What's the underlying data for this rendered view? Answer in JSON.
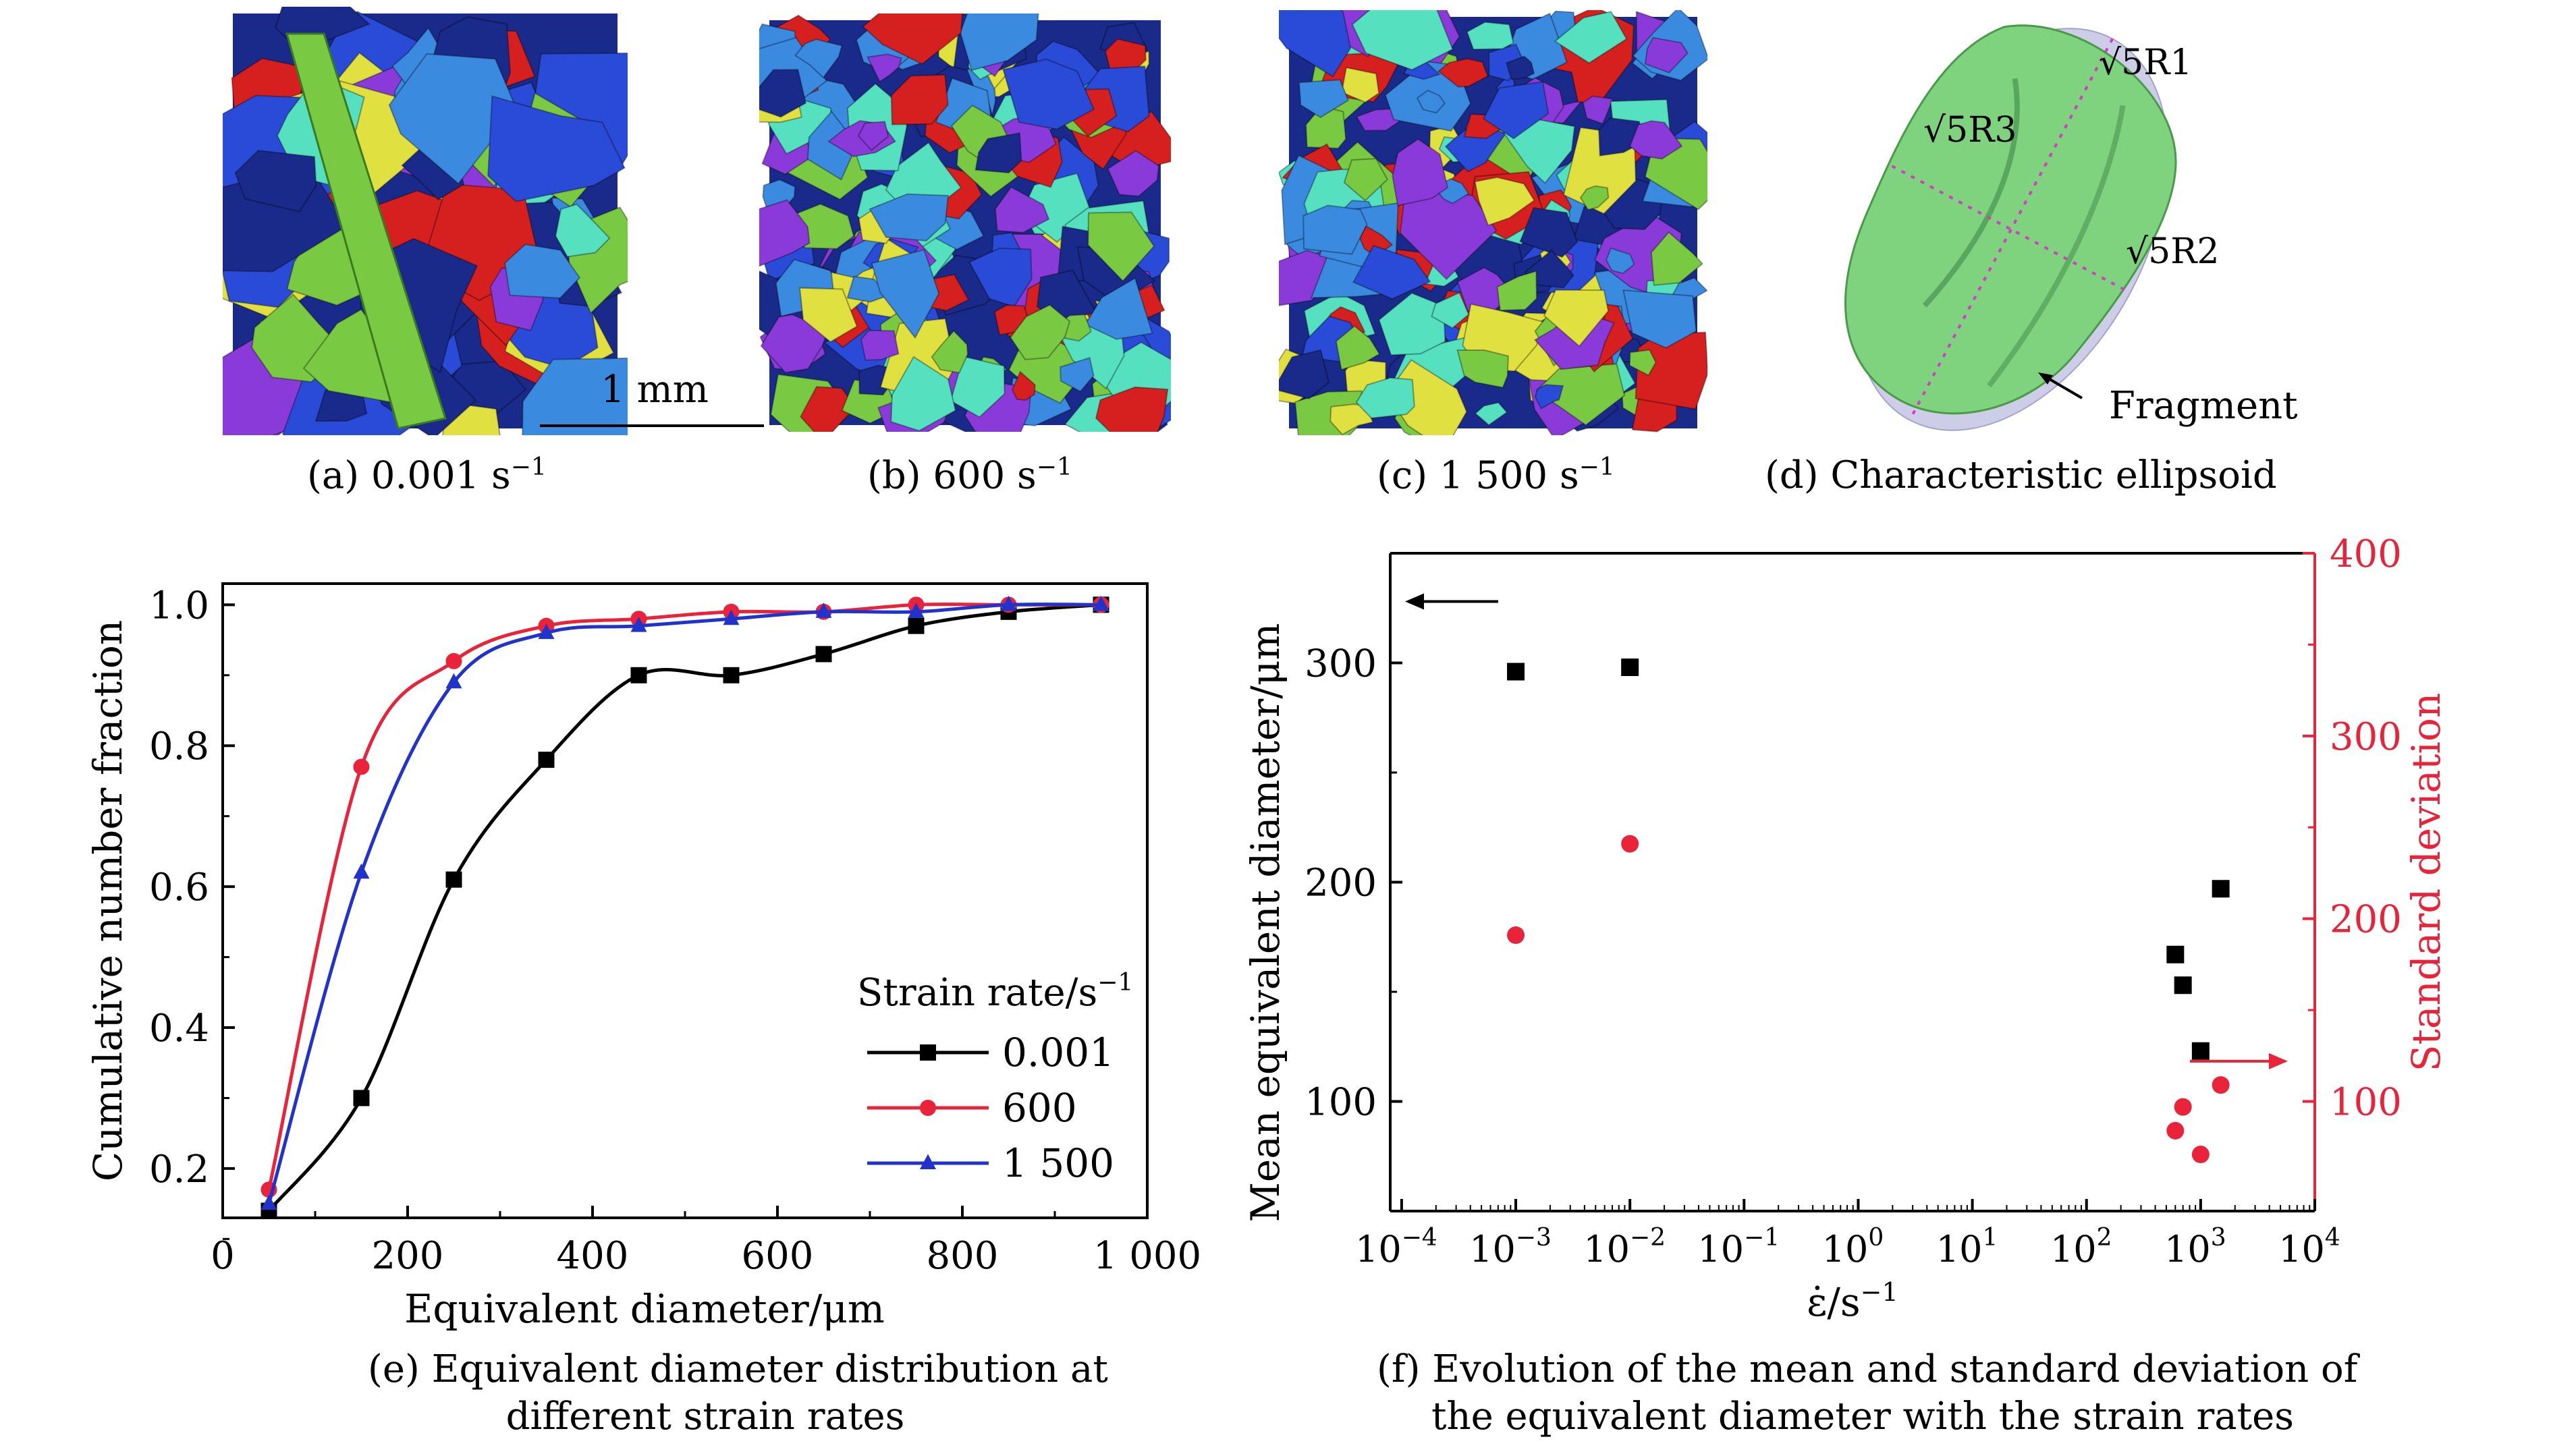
{
  "panels": {
    "a": {
      "caption": "(a) 0.001 s",
      "sup": "−1"
    },
    "b": {
      "caption": "(b) 600 s",
      "sup": "−1"
    },
    "c": {
      "caption": "(c) 1 500 s",
      "sup": "−1"
    },
    "d": {
      "caption": "(d) Characteristic ellipsoid"
    },
    "scale_bar": "1 mm",
    "ellipsoid": {
      "label_r1": "√5R1",
      "label_r2": "√5R2",
      "label_r3": "√5R3",
      "fragment_label": "Fragment",
      "fragment_color": "#7fd37f",
      "ellipsoid_color": "#c8c8e6"
    },
    "fragment_colors": [
      "#2a4bd7",
      "#d62020",
      "#7ac943",
      "#e0e040",
      "#55e0c0",
      "#8a3ad9",
      "#1a2a8a",
      "#3a8ae0"
    ]
  },
  "captions": {
    "e_line1": "(e) Equivalent diameter distribution at",
    "e_line2": "different strain rates",
    "f_line1": "(f) Evolution of the mean and standard deviation of",
    "f_line2": "the equivalent diameter with the strain rates"
  },
  "chart_data": [
    {
      "type": "line",
      "xlabel": "Equivalent diameter/μm",
      "ylabel": "Cumulative number fraction",
      "xlim": [
        0,
        1000
      ],
      "ylim": [
        0.13,
        1.03
      ],
      "xticks": [
        0,
        200,
        400,
        600,
        800,
        1000
      ],
      "xtick_labels": [
        "0",
        "200",
        "400",
        "600",
        "800",
        "1 000"
      ],
      "yticks": [
        0.2,
        0.4,
        0.6,
        0.8,
        1.0
      ],
      "ytick_labels": [
        "0.2",
        "0.4",
        "0.6",
        "0.8",
        "1.0"
      ],
      "legend_title": "Strain rate/s",
      "legend_title_sup": "−1",
      "legend_position": "lower-right",
      "series": [
        {
          "name": "0.001",
          "color": "#000000",
          "marker": "square",
          "x": [
            50,
            150,
            250,
            350,
            450,
            550,
            650,
            750,
            850,
            950
          ],
          "y": [
            0.14,
            0.3,
            0.61,
            0.78,
            0.9,
            0.9,
            0.93,
            0.97,
            0.99,
            1.0
          ]
        },
        {
          "name": "600",
          "color": "#e8233a",
          "marker": "circle",
          "x": [
            50,
            150,
            250,
            350,
            450,
            550,
            650,
            750,
            850,
            950
          ],
          "y": [
            0.17,
            0.77,
            0.92,
            0.97,
            0.98,
            0.99,
            0.99,
            1.0,
            1.0,
            1.0
          ]
        },
        {
          "name": "1 500",
          "color": "#2233cc",
          "marker": "triangle",
          "x": [
            50,
            150,
            250,
            350,
            450,
            550,
            650,
            750,
            850,
            950
          ],
          "y": [
            0.15,
            0.62,
            0.89,
            0.96,
            0.97,
            0.98,
            0.99,
            0.99,
            1.0,
            1.0
          ]
        }
      ]
    },
    {
      "type": "scatter",
      "xlabel": "ε̇/s",
      "xlabel_sup": "−1",
      "ylabel": "Mean equivalent diameter/μm",
      "y2label": "Standard deviation",
      "xscale": "log",
      "xlim_exp": [
        -4.1,
        4.0
      ],
      "xtick_exponents": [
        -4,
        -3,
        -2,
        -1,
        0,
        1,
        2,
        3,
        4
      ],
      "ylim": [
        50,
        350
      ],
      "yticks": [
        100,
        200,
        300
      ],
      "y2lim": [
        40,
        400
      ],
      "y2ticks": [
        100,
        200,
        300,
        400
      ],
      "y2_color": "#e8233a",
      "series": [
        {
          "name": "",
          "axis": "left",
          "color": "#000000",
          "marker": "square",
          "x": [
            0.001,
            0.01,
            600,
            700,
            1000,
            1500
          ],
          "y": [
            296,
            298,
            167,
            153,
            123,
            197
          ]
        },
        {
          "name": "",
          "axis": "right",
          "color": "#e8233a",
          "marker": "circle",
          "x": [
            0.001,
            0.01,
            600,
            700,
            1000,
            1500
          ],
          "y": [
            191,
            241,
            84,
            97,
            71,
            109
          ]
        }
      ]
    }
  ]
}
